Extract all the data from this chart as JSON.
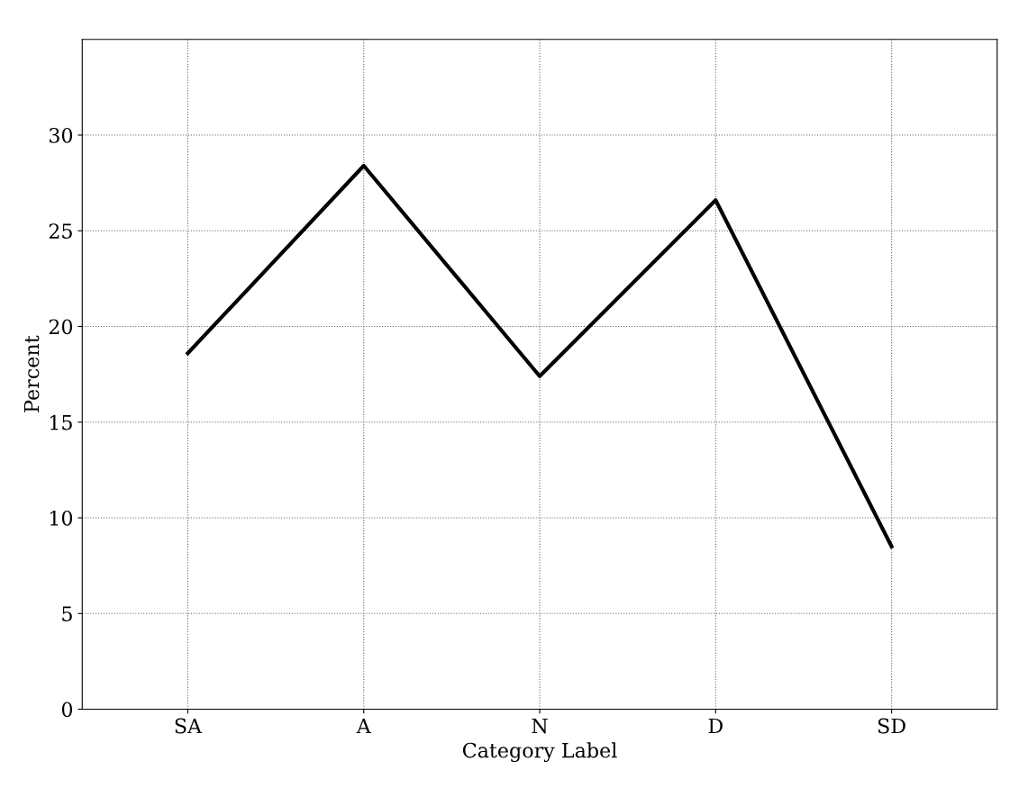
{
  "chart_data": {
    "type": "line",
    "xlabel": "Category Label",
    "ylabel": "Percent",
    "categories": [
      "SA",
      "A",
      "N",
      "D",
      "SD"
    ],
    "series": [
      {
        "color": "#000000",
        "values": [
          18.6,
          28.4,
          17.4,
          26.6,
          8.5
        ]
      }
    ],
    "ylim": [
      0,
      35
    ],
    "yticks": [
      0,
      5,
      10,
      15,
      20,
      25,
      30
    ],
    "grid": true,
    "marker": "none",
    "line_style": "solid"
  }
}
